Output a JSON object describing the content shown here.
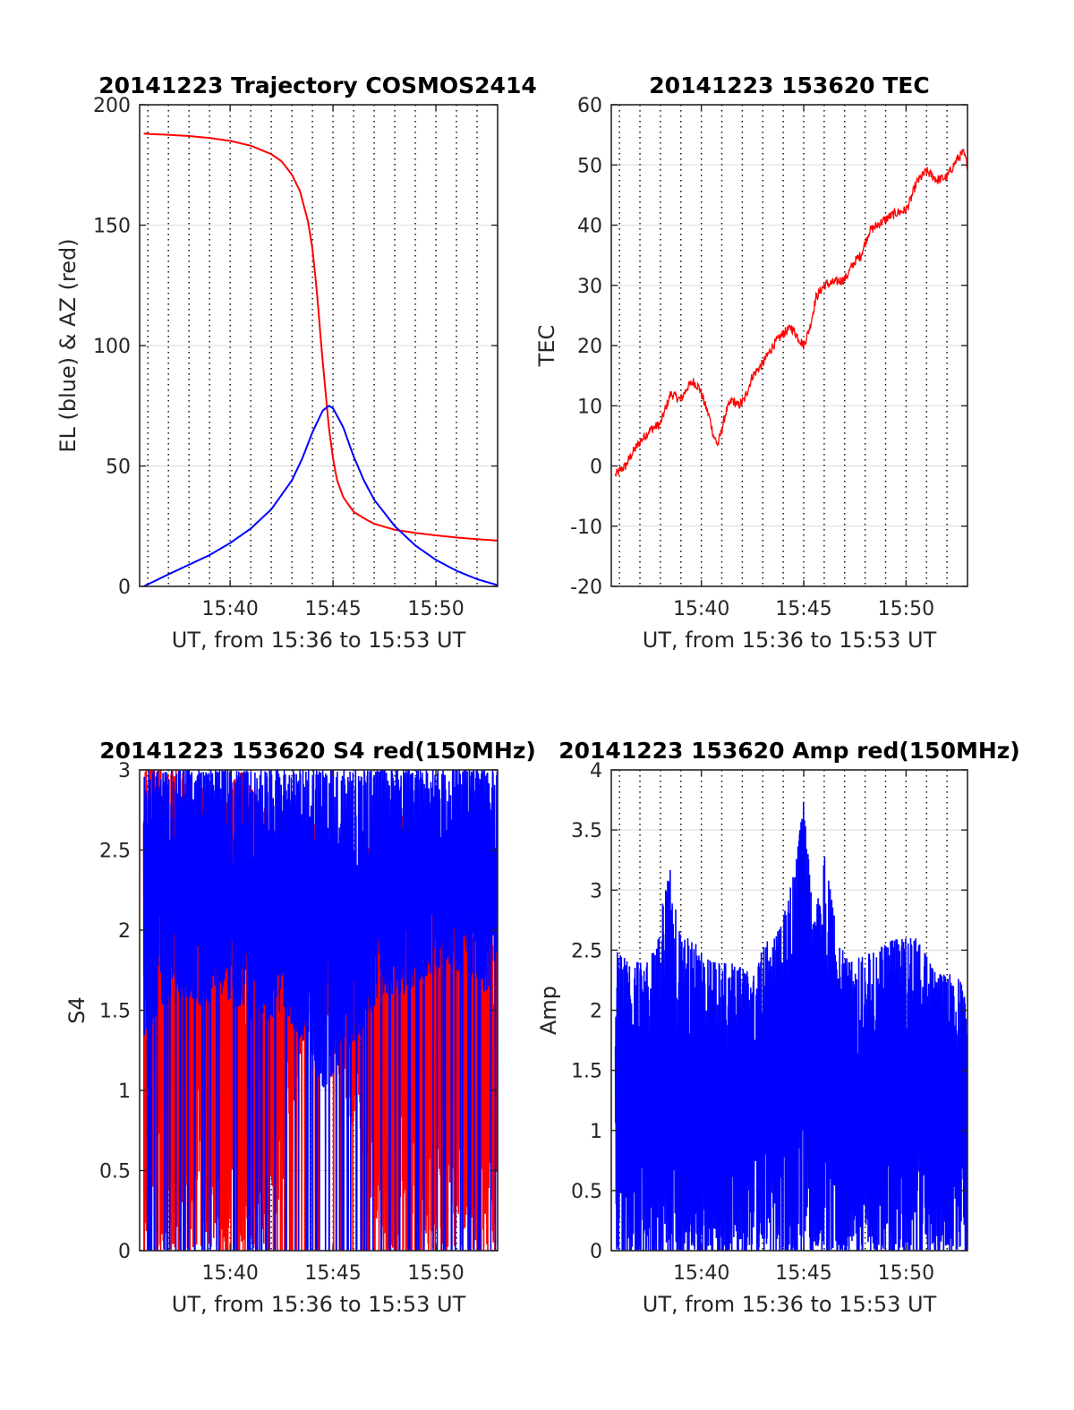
{
  "chart_data": [
    {
      "id": "trajectory",
      "type": "line",
      "title": "20141223 Trajectory COSMOS2414",
      "xlabel": "UT, from 15:36 to 15:53 UT",
      "ylabel": "EL (blue) & AZ (red)",
      "xlim": [
        15.6,
        33.0
      ],
      "ylim": [
        0,
        200
      ],
      "x_ticks": [
        {
          "v": 20,
          "label": "15:40"
        },
        {
          "v": 25,
          "label": "15:45"
        },
        {
          "v": 30,
          "label": "15:50"
        }
      ],
      "y_ticks": [
        0,
        50,
        100,
        150,
        200
      ],
      "grid": {
        "vertical_dotted_every_min": true,
        "horizontal": true
      },
      "series": [
        {
          "color": "#ff0000",
          "kind": "line",
          "x": [
            15.8,
            17,
            18,
            19,
            20,
            21,
            22,
            22.5,
            23,
            23.4,
            23.8,
            24.0,
            24.2,
            24.4,
            24.6,
            24.8,
            25.0,
            25.2,
            25.5,
            26,
            26.5,
            27,
            28,
            29,
            30,
            31,
            32,
            33
          ],
          "y": [
            188,
            187.5,
            187,
            186.2,
            185,
            183,
            179.5,
            176.5,
            171,
            164,
            151,
            140,
            124,
            103,
            84,
            66,
            53,
            44,
            37,
            31,
            28.3,
            26,
            23.5,
            22.2,
            21.2,
            20.3,
            19.6,
            19
          ]
        },
        {
          "color": "#0000ff",
          "kind": "line",
          "x": [
            15.8,
            17,
            18,
            19,
            20,
            21,
            22,
            23,
            23.5,
            24,
            24.5,
            24.8,
            25,
            25.5,
            26,
            26.5,
            27,
            28,
            29,
            30,
            31,
            32,
            33
          ],
          "y": [
            0,
            5,
            9,
            13,
            18,
            24,
            32,
            44,
            53,
            64,
            73,
            75,
            74,
            66,
            54,
            44,
            36,
            25,
            17,
            11,
            6.5,
            3,
            0.5
          ]
        }
      ]
    },
    {
      "id": "tec",
      "type": "line",
      "title": "20141223 153620 TEC",
      "xlabel": "UT, from 15:36 to 15:53 UT",
      "ylabel": "TEC",
      "xlim": [
        15.6,
        33.0
      ],
      "ylim": [
        -20,
        60
      ],
      "x_ticks": [
        {
          "v": 20,
          "label": "15:40"
        },
        {
          "v": 25,
          "label": "15:45"
        },
        {
          "v": 30,
          "label": "15:50"
        }
      ],
      "y_ticks": [
        -20,
        -10,
        0,
        10,
        20,
        30,
        40,
        50,
        60
      ],
      "grid": {
        "vertical_dotted_every_min": true,
        "horizontal": true
      },
      "series": [
        {
          "color": "#ff0000",
          "kind": "line",
          "x": [
            15.8,
            16.1,
            16.3,
            16.6,
            17,
            17.5,
            18,
            18.5,
            19,
            19.3,
            19.6,
            19.9,
            20.2,
            20.4,
            20.6,
            20.8,
            21.0,
            21.2,
            21.5,
            21.8,
            22.1,
            22.5,
            23,
            23.5,
            24,
            24.4,
            24.8,
            25.0,
            25.3,
            25.6,
            26,
            26.5,
            27,
            27.5,
            27.8,
            28.2,
            28.6,
            29,
            29.5,
            30,
            30.2,
            30.5,
            31,
            31.5,
            32,
            32.5,
            32.8,
            33
          ],
          "y": [
            -1.5,
            -0.5,
            0,
            2,
            4,
            6,
            7,
            12,
            11,
            13,
            14,
            13,
            10,
            8,
            5,
            3.5,
            6,
            9,
            11,
            10,
            11,
            15,
            17,
            20,
            22,
            23,
            21,
            20,
            23,
            28,
            30,
            30.5,
            31,
            34,
            35,
            39,
            40,
            41,
            42,
            42.5,
            44,
            47,
            49,
            47.5,
            48,
            51,
            52,
            50
          ]
        }
      ]
    },
    {
      "id": "s4",
      "type": "line",
      "title": "20141223 153620 S4 red(150MHz)",
      "xlabel": "UT, from 15:36 to 15:53 UT",
      "ylabel": "S4",
      "xlim": [
        15.6,
        33.0
      ],
      "ylim": [
        0,
        3
      ],
      "x_ticks": [
        {
          "v": 20,
          "label": "15:40"
        },
        {
          "v": 25,
          "label": "15:45"
        },
        {
          "v": 30,
          "label": "15:50"
        }
      ],
      "y_ticks": [
        0,
        0.5,
        1,
        1.5,
        2,
        2.5,
        3
      ],
      "y_tick_labels": [
        "0",
        "0.5",
        "1",
        "1.5",
        "2",
        "2.5",
        "3"
      ],
      "grid": {
        "vertical_dotted_every_min": true,
        "horizontal": true
      },
      "series": [
        {
          "color": "#ff0000",
          "kind": "noisy",
          "x": [
            15.8,
            16.5,
            17.5,
            18.5,
            19.5,
            20.5,
            21.5,
            22.5,
            23.5,
            24.5,
            25.5,
            26.5,
            27.5,
            28.5,
            29.5,
            30.5,
            31.5,
            32.5,
            33
          ],
          "y_top": [
            3,
            3,
            3,
            2.9,
            2.8,
            3,
            2.8,
            2.6,
            2.6,
            2.7,
            2.5,
            2.5,
            2.6,
            2.8,
            2.7,
            2.4,
            2.5,
            2.6,
            2.3
          ],
          "y_bottom": [
            0,
            0,
            0,
            0,
            0,
            0,
            0,
            0.3,
            1.3,
            1.5,
            1.0,
            0.5,
            0,
            0,
            0,
            0,
            0,
            0,
            0
          ]
        },
        {
          "color": "#0000ff",
          "kind": "noisy",
          "x": [
            15.8,
            16.5,
            17.5,
            18.5,
            19.5,
            20.5,
            21.5,
            22.5,
            23.5,
            24.5,
            25.5,
            26.5,
            27.5,
            28.5,
            29.5,
            30.5,
            31.5,
            32.5,
            33
          ],
          "y_top": [
            3,
            3,
            3,
            3,
            3,
            3,
            3,
            3,
            3,
            3,
            3,
            3,
            3,
            3,
            3,
            3,
            3,
            3,
            3
          ],
          "y_bottom": [
            1.3,
            1.5,
            1.6,
            1.5,
            1.6,
            1.5,
            1.4,
            1.5,
            1.3,
            1.0,
            1.2,
            1.4,
            1.6,
            1.6,
            1.7,
            1.8,
            1.7,
            1.6,
            1.9
          ]
        }
      ]
    },
    {
      "id": "amp",
      "type": "line",
      "title": "20141223 153620 Amp red(150MHz)",
      "xlabel": "UT, from 15:36 to 15:53 UT",
      "ylabel": "Amp",
      "xlim": [
        15.6,
        33.0
      ],
      "ylim": [
        0,
        4
      ],
      "x_ticks": [
        {
          "v": 20,
          "label": "15:40"
        },
        {
          "v": 25,
          "label": "15:45"
        },
        {
          "v": 30,
          "label": "15:50"
        }
      ],
      "y_ticks": [
        0,
        0.5,
        1,
        1.5,
        2,
        2.5,
        3,
        3.5,
        4
      ],
      "y_tick_labels": [
        "0",
        "0.5",
        "1",
        "1.5",
        "2",
        "2.5",
        "3",
        "3.5",
        "4"
      ],
      "grid": {
        "vertical_dotted_every_min": true,
        "horizontal": true
      },
      "series": [
        {
          "color": "#0000ff",
          "kind": "noisy",
          "x": [
            15.8,
            16.5,
            17.5,
            18.5,
            19.0,
            19.5,
            20.5,
            21.5,
            22.5,
            23.2,
            23.9,
            24.6,
            25.0,
            25.5,
            26.0,
            26.7,
            27.2,
            28.5,
            29.5,
            30.5,
            31.5,
            32.5,
            33
          ],
          "y_top": [
            2.5,
            2.4,
            2.4,
            3.2,
            2.6,
            2.6,
            2.4,
            2.4,
            2.3,
            2.6,
            2.7,
            3.2,
            3.75,
            2.7,
            3.3,
            2.6,
            2.4,
            2.5,
            2.6,
            2.6,
            2.3,
            2.3,
            2.1
          ],
          "y_bottom": [
            0,
            0,
            0,
            0,
            0,
            0,
            0,
            0,
            0,
            0,
            0,
            0,
            0,
            0,
            0,
            0,
            0,
            0,
            0,
            0,
            0,
            0,
            0
          ]
        }
      ]
    }
  ]
}
